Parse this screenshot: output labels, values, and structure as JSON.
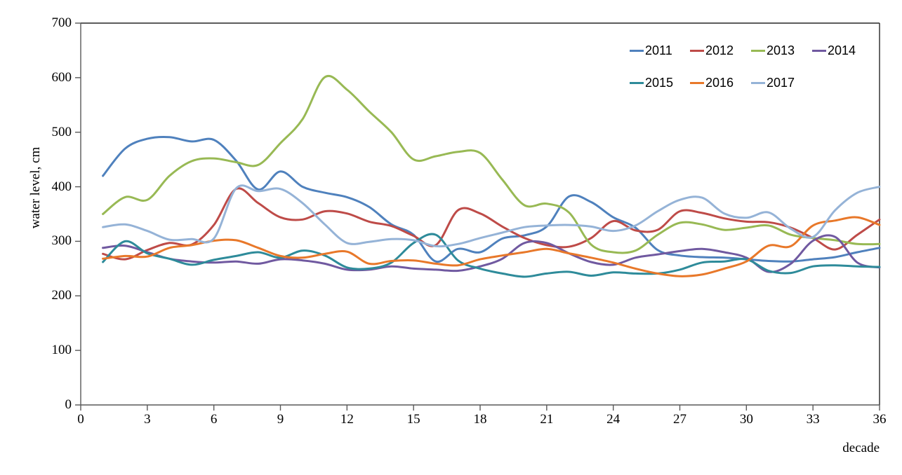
{
  "chart_data": {
    "type": "line",
    "title": "",
    "xlabel": "decade",
    "ylabel": "water level, cm",
    "xlim": [
      0,
      36
    ],
    "ylim": [
      0,
      700
    ],
    "xticks": [
      0,
      3,
      6,
      9,
      12,
      15,
      18,
      21,
      24,
      27,
      30,
      33,
      36
    ],
    "yticks": [
      0,
      100,
      200,
      300,
      400,
      500,
      600,
      700
    ],
    "grid": false,
    "smooth_lines": true,
    "legend_position": "inside-top-right-two-rows",
    "x_start": 1,
    "x_step": 1,
    "series": [
      {
        "name": "2011",
        "color": "#4F81BD",
        "values": [
          420,
          470,
          488,
          491,
          483,
          486,
          448,
          395,
          428,
          400,
          389,
          381,
          363,
          331,
          312,
          263,
          286,
          280,
          305,
          311,
          327,
          382,
          372,
          344,
          325,
          284,
          274,
          271,
          270,
          267,
          264,
          263,
          267,
          271,
          280,
          288
        ]
      },
      {
        "name": "2012",
        "color": "#BE4B48",
        "values": [
          277,
          267,
          284,
          297,
          294,
          330,
          396,
          370,
          344,
          340,
          355,
          351,
          336,
          328,
          310,
          293,
          357,
          351,
          327,
          306,
          293,
          290,
          306,
          337,
          320,
          321,
          355,
          352,
          342,
          336,
          335,
          325,
          306,
          285,
          312,
          340
        ]
      },
      {
        "name": "2013",
        "color": "#98B954",
        "values": [
          350,
          381,
          376,
          420,
          447,
          452,
          445,
          440,
          480,
          524,
          601,
          578,
          538,
          500,
          450,
          456,
          464,
          462,
          413,
          366,
          369,
          353,
          294,
          280,
          283,
          312,
          334,
          331,
          321,
          325,
          329,
          312,
          306,
          302,
          295,
          295
        ]
      },
      {
        "name": "2014",
        "color": "#7059A0",
        "values": [
          288,
          292,
          280,
          268,
          263,
          261,
          263,
          259,
          267,
          265,
          259,
          248,
          248,
          254,
          250,
          248,
          246,
          254,
          268,
          297,
          297,
          278,
          262,
          257,
          270,
          276,
          282,
          286,
          280,
          270,
          244,
          259,
          301,
          308,
          261,
          252
        ]
      },
      {
        "name": "2015",
        "color": "#2E8B9A",
        "values": [
          262,
          300,
          278,
          268,
          257,
          266,
          273,
          280,
          270,
          283,
          274,
          252,
          250,
          261,
          297,
          312,
          265,
          250,
          241,
          235,
          241,
          244,
          237,
          243,
          241,
          241,
          248,
          261,
          263,
          267,
          246,
          242,
          254,
          256,
          254,
          253
        ]
      },
      {
        "name": "2016",
        "color": "#E8782A",
        "values": [
          268,
          273,
          272,
          288,
          293,
          301,
          302,
          288,
          273,
          270,
          277,
          281,
          259,
          264,
          265,
          259,
          256,
          267,
          274,
          280,
          286,
          278,
          270,
          261,
          250,
          241,
          236,
          239,
          250,
          263,
          292,
          291,
          329,
          338,
          344,
          330
        ]
      },
      {
        "name": "2017",
        "color": "#95B3D7",
        "values": [
          326,
          331,
          319,
          303,
          304,
          305,
          397,
          392,
          396,
          370,
          331,
          297,
          299,
          304,
          302,
          291,
          295,
          306,
          316,
          326,
          329,
          330,
          327,
          319,
          329,
          355,
          376,
          380,
          351,
          343,
          353,
          323,
          308,
          357,
          389,
          400
        ]
      }
    ]
  },
  "style": {
    "axis_color": "#595959",
    "border_color": "#262626",
    "text_color": "#000000",
    "background": "#ffffff"
  }
}
